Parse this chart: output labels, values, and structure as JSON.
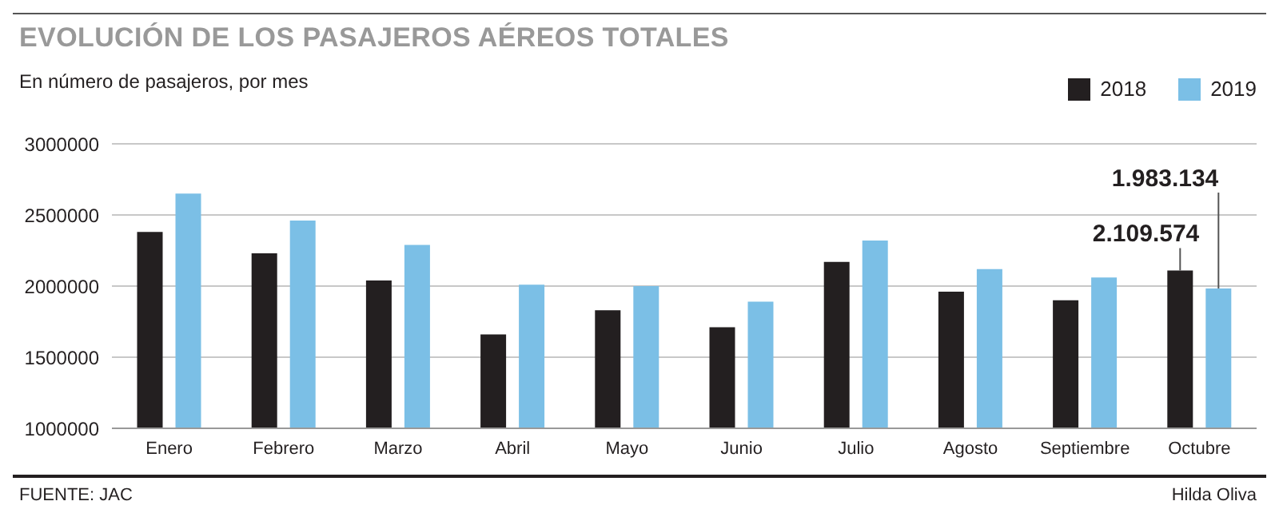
{
  "chart_data": {
    "type": "bar",
    "title": "EVOLUCIÓN DE LOS PASAJEROS AÉREOS TOTALES",
    "subtitle": "En número de pasajeros, por mes",
    "categories": [
      "Enero",
      "Febrero",
      "Marzo",
      "Abril",
      "Mayo",
      "Junio",
      "Julio",
      "Agosto",
      "Septiembre",
      "Octubre"
    ],
    "series": [
      {
        "name": "2018",
        "color": "#231f20",
        "values": [
          2380000,
          2230000,
          2040000,
          1660000,
          1830000,
          1710000,
          2170000,
          1960000,
          1900000,
          2109574
        ],
        "value_labels": [
          null,
          null,
          null,
          null,
          null,
          null,
          null,
          null,
          null,
          "2.109.574"
        ]
      },
      {
        "name": "2019",
        "color": "#7bbfe6",
        "values": [
          2650000,
          2460000,
          2290000,
          2010000,
          2000000,
          1890000,
          2320000,
          2120000,
          2060000,
          1983134
        ],
        "value_labels": [
          null,
          null,
          null,
          null,
          null,
          null,
          null,
          null,
          null,
          "1.983.134"
        ]
      }
    ],
    "ylim": [
      1000000,
      3000000
    ],
    "yticks": [
      1000000,
      1500000,
      2000000,
      2500000,
      3000000
    ],
    "grid": "y",
    "legend": "top right",
    "annotations": [
      "FUENTE: JAC",
      "Hilda Oliva"
    ]
  }
}
